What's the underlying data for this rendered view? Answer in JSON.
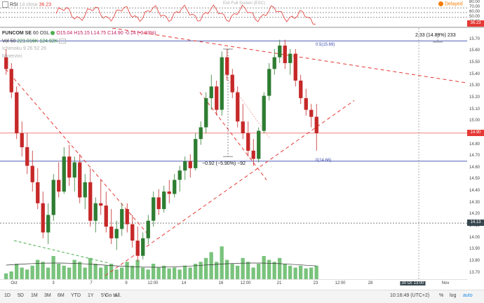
{
  "rsi": {
    "label": "RSI",
    "params": "14 close",
    "value": "36.23",
    "exit_fullscreen": "Exit Full Screen (ESC)",
    "delayed": "Delayed",
    "axis_labels": [
      "80.00",
      "70.00",
      "60.00",
      "50.00",
      "40.00"
    ],
    "current_tag": "36.23",
    "colors": {
      "line": "#e53935",
      "band": "#555555"
    }
  },
  "main": {
    "symbol": "FUNCOM SE",
    "interval": "60",
    "exchange": "OSL",
    "ohlc": "O15.04  H15.15  L14.75  C14.90  -0.14  (-0.93%)",
    "vol_label": "Vol 50",
    "vol_values": "221.016K  124.92K",
    "ichimoku": "Ichimoku 9 26 52 26",
    "minervini": "Minervini",
    "fib_top": "0.5(15.69)",
    "fib_bottom": "0(14.66)",
    "measure_down": "−0.92 (−5.90%) −92",
    "measure_up": "2.33 (14.89%) 233",
    "colors": {
      "up": "#2e7d32",
      "down": "#c62828",
      "fib": "#3949ab",
      "trend": "#e53935",
      "volume": "#4caf50"
    }
  },
  "price_axis": {
    "labels": [
      "15.70",
      "15.60",
      "15.50",
      "15.40",
      "15.30",
      "15.20",
      "15.10",
      "15.00",
      "14.90",
      "14.80",
      "14.70",
      "14.60",
      "14.50",
      "14.40",
      "14.30",
      "14.20",
      "14.10",
      "14.00",
      "13.90",
      "13.80",
      "13.70"
    ],
    "current_tag": "14.90",
    "level_tag": "14.13"
  },
  "time_axis": {
    "labels": [
      "Oct",
      "3",
      "7",
      "9",
      "12:00",
      "14",
      "16",
      "12:00",
      "21",
      "23",
      "12:00",
      "28",
      "30 Oct '19",
      "13:00",
      "Nov"
    ]
  },
  "bottom_bar": {
    "ranges": [
      "1D",
      "5D",
      "1M",
      "3M",
      "6M",
      "YTD",
      "1Y",
      "5Y",
      "All"
    ],
    "goto": "Go to...",
    "time": "10:16:49 (UTC+2)",
    "pct": "%",
    "log": "log",
    "auto": "auto"
  },
  "chart_data": {
    "type": "candlestick",
    "title": "FUNCOM SE 60 OSL",
    "ylim": [
      13.65,
      15.8
    ],
    "last_close": 14.9,
    "candles": [
      [
        15.55,
        15.62,
        15.4,
        15.45
      ],
      [
        15.45,
        15.5,
        15.2,
        15.25
      ],
      [
        15.25,
        15.3,
        14.85,
        14.9
      ],
      [
        14.9,
        15.0,
        14.7,
        14.78
      ],
      [
        14.78,
        14.9,
        14.55,
        14.62
      ],
      [
        14.62,
        14.75,
        14.4,
        14.48
      ],
      [
        14.48,
        14.6,
        14.25,
        14.3
      ],
      [
        14.3,
        14.4,
        14.0,
        14.05
      ],
      [
        14.05,
        14.3,
        13.95,
        14.2
      ],
      [
        14.2,
        14.55,
        14.15,
        14.5
      ],
      [
        14.5,
        14.65,
        14.35,
        14.4
      ],
      [
        14.4,
        14.78,
        14.38,
        14.7
      ],
      [
        14.7,
        14.8,
        14.45,
        14.52
      ],
      [
        14.52,
        14.7,
        14.4,
        14.65
      ],
      [
        14.65,
        14.72,
        14.3,
        14.35
      ],
      [
        14.35,
        14.55,
        14.25,
        14.48
      ],
      [
        14.48,
        14.6,
        14.1,
        14.15
      ],
      [
        14.15,
        14.35,
        14.05,
        14.3
      ],
      [
        14.3,
        14.5,
        14.2,
        14.28
      ],
      [
        14.28,
        14.4,
        14.05,
        14.1
      ],
      [
        14.1,
        14.25,
        13.95,
        14.0
      ],
      [
        14.0,
        14.15,
        13.9,
        14.08
      ],
      [
        14.08,
        14.3,
        14.02,
        14.25
      ],
      [
        14.25,
        14.3,
        14.05,
        14.12
      ],
      [
        14.12,
        14.2,
        13.92,
        13.98
      ],
      [
        13.98,
        14.1,
        13.8,
        13.85
      ],
      [
        13.85,
        14.05,
        13.82,
        14.0
      ],
      [
        14.0,
        14.2,
        13.95,
        14.15
      ],
      [
        14.15,
        14.4,
        14.1,
        14.35
      ],
      [
        14.35,
        14.42,
        14.2,
        14.25
      ],
      [
        14.25,
        14.45,
        14.22,
        14.4
      ],
      [
        14.4,
        14.5,
        14.3,
        14.38
      ],
      [
        14.38,
        14.55,
        14.35,
        14.5
      ],
      [
        14.5,
        14.62,
        14.4,
        14.58
      ],
      [
        14.58,
        14.7,
        14.5,
        14.66
      ],
      [
        14.66,
        14.72,
        14.52,
        14.6
      ],
      [
        14.6,
        14.9,
        14.58,
        14.85
      ],
      [
        14.85,
        15.0,
        14.8,
        14.95
      ],
      [
        14.95,
        15.25,
        14.9,
        15.2
      ],
      [
        15.2,
        15.4,
        15.1,
        15.3
      ],
      [
        15.3,
        15.35,
        15.05,
        15.1
      ],
      [
        15.1,
        15.6,
        15.05,
        15.55
      ],
      [
        15.55,
        15.62,
        15.35,
        15.4
      ],
      [
        15.4,
        15.45,
        15.2,
        15.25
      ],
      [
        15.25,
        15.3,
        14.95,
        15.0
      ],
      [
        15.0,
        15.15,
        14.85,
        14.9
      ],
      [
        14.9,
        15.0,
        14.7,
        14.75
      ],
      [
        14.75,
        14.85,
        14.62,
        14.68
      ],
      [
        14.68,
        14.95,
        14.65,
        14.92
      ],
      [
        14.92,
        15.25,
        14.9,
        15.22
      ],
      [
        15.22,
        15.5,
        15.18,
        15.45
      ],
      [
        15.45,
        15.62,
        15.4,
        15.55
      ],
      [
        15.55,
        15.7,
        15.5,
        15.65
      ],
      [
        15.65,
        15.7,
        15.45,
        15.5
      ],
      [
        15.5,
        15.62,
        15.4,
        15.58
      ],
      [
        15.58,
        15.62,
        15.3,
        15.35
      ],
      [
        15.35,
        15.4,
        15.15,
        15.2
      ],
      [
        15.2,
        15.28,
        15.05,
        15.1
      ],
      [
        15.1,
        15.15,
        14.95,
        15.04
      ],
      [
        15.04,
        15.15,
        14.75,
        14.9
      ]
    ],
    "volume": [
      0.15,
      0.2,
      0.4,
      0.3,
      0.25,
      0.35,
      0.5,
      0.45,
      0.3,
      0.6,
      0.4,
      0.35,
      0.3,
      0.5,
      0.45,
      0.3,
      0.55,
      0.4,
      0.3,
      0.35,
      0.4,
      0.25,
      0.3,
      0.45,
      0.35,
      0.5,
      0.3,
      0.25,
      0.4,
      0.3,
      0.35,
      0.28,
      0.3,
      0.25,
      0.35,
      0.3,
      0.4,
      0.45,
      0.55,
      0.7,
      0.45,
      0.85,
      0.5,
      0.4,
      0.35,
      0.55,
      0.45,
      0.3,
      0.4,
      0.6,
      0.5,
      0.45,
      0.55,
      0.4,
      0.35,
      0.3,
      0.35,
      0.28,
      0.3,
      0.35
    ],
    "levels": {
      "fib_0.5": 15.69,
      "fib_0": 14.66,
      "horizontal": 14.13,
      "current": 14.9
    }
  }
}
